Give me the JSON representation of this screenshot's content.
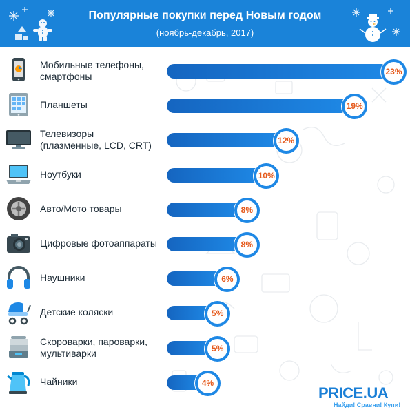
{
  "header": {
    "title": "Популярные покупки перед Новым годом",
    "subtitle": "(ноябрь-декабрь, 2017)"
  },
  "brand": {
    "name": "PRICE.UA",
    "tagline": "Найди! Сравни! Купи!"
  },
  "colors": {
    "header": "#1a83d9",
    "bar": "#1e88e5",
    "bar_dark": "#1565c0",
    "percent_text": "#e55a1c"
  },
  "chart_data": {
    "type": "bar",
    "orientation": "horizontal",
    "title": "Популярные покупки перед Новым годом",
    "subtitle": "(ноябрь-декабрь, 2017)",
    "unit": "%",
    "categories": [
      "Мобильные телефоны, смартфоны",
      "Планшеты",
      "Телевизоры (плазменные, LCD, CRT)",
      "Ноутбуки",
      "Авто/Мото товары",
      "Цифровые фотоаппараты",
      "Наушники",
      "Детские коляски",
      "Скороварки, пароварки, мультиварки",
      "Чайники"
    ],
    "label_lines": [
      [
        "Мобильные телефоны,",
        "смартфоны"
      ],
      [
        "Планшеты"
      ],
      [
        "Телевизоры",
        "(плазменные, LCD, CRT)"
      ],
      [
        "Ноутбуки"
      ],
      [
        "Авто/Мото товары"
      ],
      [
        "Цифровые фотоаппараты"
      ],
      [
        "Наушники"
      ],
      [
        "Детские коляски"
      ],
      [
        "Скороварки, пароварки,",
        "мультиварки"
      ],
      [
        "Чайники"
      ]
    ],
    "values": [
      23,
      19,
      12,
      10,
      8,
      8,
      6,
      5,
      5,
      4
    ],
    "value_labels": [
      "23%",
      "19%",
      "12%",
      "10%",
      "8%",
      "8%",
      "6%",
      "5%",
      "5%",
      "4%"
    ],
    "icons": [
      "smartphone-icon",
      "tablet-icon",
      "tv-icon",
      "laptop-icon",
      "car-wheel-icon",
      "camera-icon",
      "headphones-icon",
      "stroller-icon",
      "steamer-icon",
      "kettle-icon"
    ],
    "xlim": [
      0,
      23
    ],
    "grid": false,
    "legend": "none"
  }
}
